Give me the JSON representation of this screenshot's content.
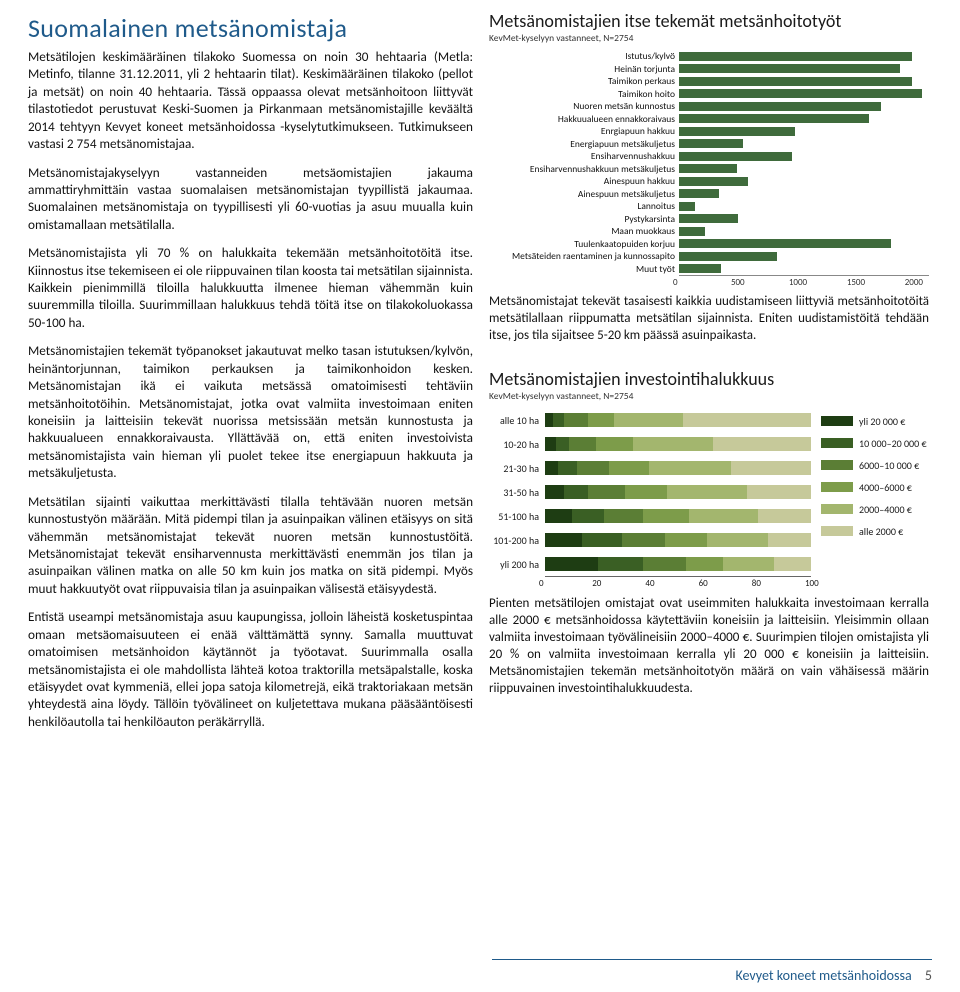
{
  "title": "Suomalainen metsänomistaja",
  "paragraphs": [
    "Metsätilojen keskimääräinen tilakoko Suomessa on noin 30 hehtaaria (Metla: Metinfo, tilanne 31.12.2011, yli 2 hehtaarin tilat). Keskimääräinen tilakoko (pellot ja metsät) on noin 40 hehtaaria. Tässä oppaassa olevat metsänhoitoon liittyvät tilastotiedot perustuvat Keski-Suomen ja Pirkanmaan metsänomistajille keväältä 2014 tehtyyn Kevyet koneet metsänhoidossa -kyselytutkimukseen. Tutkimukseen vastasi 2 754 metsänomistajaa.",
    "Metsänomistajakyselyyn vastanneiden metsäomistajien jakauma ammattiryhmittäin vastaa suomalaisen metsänomistajan tyypillistä jakaumaa. Suomalainen metsänomistaja on tyypillisesti yli 60-vuotias ja asuu muualla kuin omistamallaan metsätilalla.",
    "Metsänomistajista yli 70 % on halukkaita tekemään metsänhoitotöitä itse. Kiinnostus itse tekemiseen ei ole riippuvainen tilan koosta tai metsätilan sijainnista. Kaikkein pienimmillä tiloilla halukkuutta ilmenee hieman vähemmän kuin suuremmilla tiloilla. Suurimmillaan halukkuus tehdä töitä itse on tilakokoluokassa 50-100 ha.",
    "Metsänomistajien tekemät työpanokset jakautuvat melko tasan istutuksen/kylvön, heinäntorjunnan, taimikon perkauksen ja taimikonhoidon kesken. Metsänomistajan ikä ei vaikuta metsässä omatoimisesti tehtäviin metsänhoitotöihin. Metsänomistajat, jotka ovat valmiita investoimaan eniten koneisiin ja laitteisiin tekevät nuorissa metsissään metsän kunnostusta ja hakkuualueen ennakkoraivausta. Yllättävää on, että eniten investoivista metsänomistajista vain hieman yli puolet tekee itse energiapuun hakkuuta ja metsäkuljetusta.",
    "Metsätilan sijainti vaikuttaa merkittävästi tilalla tehtävään nuoren metsän kunnostustyön määrään. Mitä pidempi tilan ja asuinpaikan välinen etäisyys on sitä vähemmän metsänomistajat tekevät nuoren metsän kunnostustöitä. Metsänomistajat tekevät ensiharvennusta merkittävästi enemmän jos tilan ja asuinpaikan välinen matka on alle 50 km kuin jos matka on sitä pidempi. Myös muut hakkuutyöt ovat riippuvaisia tilan ja asuinpaikan välisestä etäisyydestä.",
    "Entistä useampi metsänomistaja asuu kaupungissa, jolloin läheistä kosketuspintaa omaan metsäomaisuuteen ei enää välttämättä synny. Samalla muuttuvat omatoimisen metsänhoidon käytännöt ja työotavat. Suurimmalla osalla metsänomistajista ei ole mahdollista lähteä kotoa traktorilla metsäpalstalle, koska etäisyydet ovat kymmeniä, ellei jopa satoja kilometrejä, eikä traktoriakaan metsän yhteydestä aina löydy. Tällöin työvälineet on kuljetettava mukana pääsääntöisesti henkilöautolla tai henkilöauton peräkärryllä."
  ],
  "chart1": {
    "title": "Metsänomistajien itse tekemät metsänhoitotyöt",
    "subtitle": "KevMet-kyselyyn vastanneet, N=2754",
    "xmax": 2000,
    "ticks": [
      0,
      500,
      1000,
      1500,
      2000
    ],
    "bar_color": "#3f6b3c",
    "rows": [
      {
        "label": "Istutus/kylvö",
        "value": 1900
      },
      {
        "label": "Heinän torjunta",
        "value": 1800
      },
      {
        "label": "Taimikon perkaus",
        "value": 1900
      },
      {
        "label": "Taimikon hoito",
        "value": 1980
      },
      {
        "label": "Nuoren metsän kunnostus",
        "value": 1650
      },
      {
        "label": "Hakkuualueen ennakkoraivaus",
        "value": 1550
      },
      {
        "label": "Enrgiapuun hakkuu",
        "value": 950
      },
      {
        "label": "Energiapuun metsäkuljetus",
        "value": 520
      },
      {
        "label": "Ensiharvennushakkuu",
        "value": 920
      },
      {
        "label": "Ensiharvennushakkuun metsäkuljetus",
        "value": 470
      },
      {
        "label": "Ainespuun hakkuu",
        "value": 560
      },
      {
        "label": "Ainespuun metsäkuljetus",
        "value": 330
      },
      {
        "label": "Lannoitus",
        "value": 130
      },
      {
        "label": "Pystykarsinta",
        "value": 480
      },
      {
        "label": "Maan muokkaus",
        "value": 210
      },
      {
        "label": "Tuulenkaatopuiden korjuu",
        "value": 1730
      },
      {
        "label": "Metsäteiden raentaminen ja kunnossapito",
        "value": 800
      },
      {
        "label": "Muut työt",
        "value": 340
      }
    ],
    "caption": "Metsänomistajat tekevät tasaisesti kaikkia uudistamiseen liittyviä metsänhoitotöitä metsätilallaan riippumatta metsätilan sijainnista. Eniten uudistamistöitä tehdään itse, jos tila sijaitsee 5-20 km päässä asuinpaikasta."
  },
  "chart2": {
    "title": "Metsänomistajien investointihalukkuus",
    "subtitle": "KevMet-kyselyyn vastanneet, N=2754",
    "categories": [
      "alle 10 ha",
      "10-20 ha",
      "21-30 ha",
      "31-50 ha",
      "51-100 ha",
      "101-200 ha",
      "yli 200 ha"
    ],
    "legend": [
      "yli 20 000 €",
      "10 000–20 000 €",
      "6000–10 000 €",
      "4000–6000 €",
      "2000–4000 €",
      "alle 2000 €"
    ],
    "colors": [
      "#1e3d13",
      "#3a5f24",
      "#5b7e35",
      "#7d9c4a",
      "#a3b66e",
      "#c6c99a"
    ],
    "xmax": 100,
    "ticks": [
      0,
      20,
      40,
      60,
      80,
      100
    ],
    "data": [
      [
        3,
        4,
        9,
        10,
        26,
        48
      ],
      [
        4,
        5,
        10,
        14,
        30,
        37
      ],
      [
        5,
        7,
        12,
        15,
        31,
        30
      ],
      [
        7,
        9,
        14,
        16,
        30,
        24
      ],
      [
        10,
        12,
        15,
        17,
        26,
        20
      ],
      [
        14,
        15,
        16,
        16,
        23,
        16
      ],
      [
        20,
        17,
        16,
        14,
        19,
        14
      ]
    ],
    "caption": "Pienten metsätilojen omistajat ovat useimmiten halukkaita investoimaan kerralla alle 2000 € metsänhoidossa käytettäviin koneisiin ja laitteisiin. Yleisimmin ollaan valmiita investoimaan työvälineisiin 2000–4000 €. Suurimpien tilojen omistajista yli 20 % on valmiita investoimaan kerralla yli 20 000 € koneisiin ja laitteisiin. Metsänomistajien tekemän metsänhoitotyön määrä on vain vähäisessä määrin riippuvainen investointihalukkuudesta."
  },
  "footer": {
    "text": "Kevyet koneet metsänhoidossa",
    "page": "5"
  }
}
